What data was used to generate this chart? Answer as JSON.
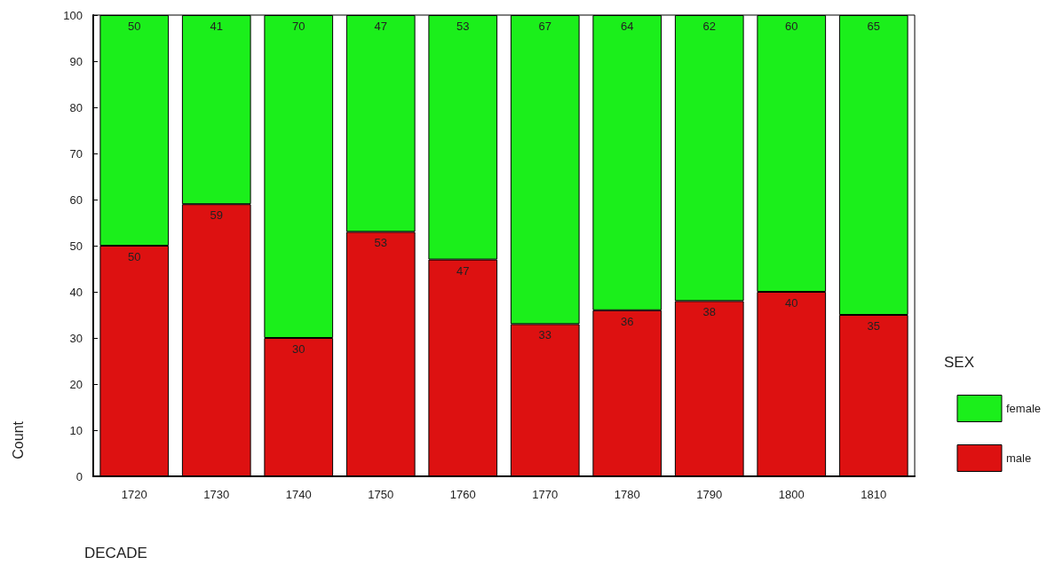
{
  "chart_data": {
    "type": "bar",
    "stacked": true,
    "xlabel": "DECADE",
    "ylabel": "Count",
    "legend_title": "SEX",
    "categories": [
      "1720",
      "1730",
      "1740",
      "1750",
      "1760",
      "1770",
      "1780",
      "1790",
      "1800",
      "1810"
    ],
    "series": [
      {
        "name": "male",
        "color": "#dd1111",
        "values": [
          50,
          59,
          30,
          53,
          47,
          33,
          36,
          38,
          40,
          35
        ]
      },
      {
        "name": "female",
        "color": "#1bef1b",
        "values": [
          50,
          41,
          70,
          47,
          53,
          67,
          64,
          62,
          60,
          65
        ]
      }
    ],
    "ylim": [
      0,
      100
    ],
    "yticks": [
      0,
      10,
      20,
      30,
      40,
      50,
      60,
      70,
      80,
      90,
      100
    ],
    "grid": false,
    "legend": "right",
    "data_labels": true
  }
}
